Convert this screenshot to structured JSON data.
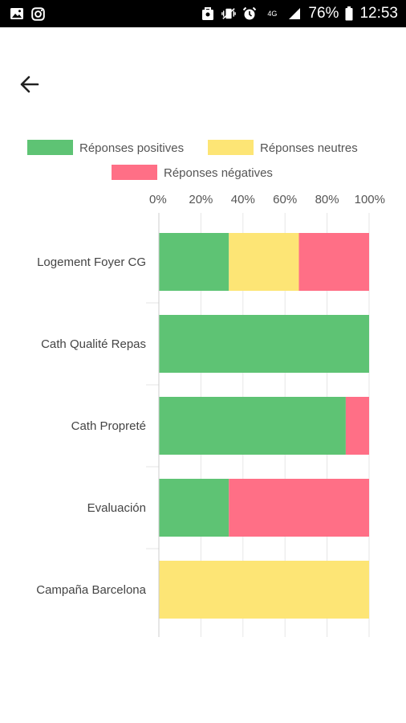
{
  "status_bar": {
    "left_icons": [
      "image-icon",
      "instagram-icon"
    ],
    "right_icons": [
      "work-profile-icon",
      "vibrate-icon",
      "alarm-icon",
      "network-icon",
      "signal-icon"
    ],
    "network_type": "4G",
    "battery": "76%",
    "time": "12:53"
  },
  "nav": {
    "back_icon": "arrow-left-icon"
  },
  "colors": {
    "positive": "#5ec374",
    "neutral": "#fde575",
    "negative": "#ff6f86"
  },
  "chart_data": {
    "type": "bar",
    "orientation": "horizontal",
    "stacked": true,
    "percent_stacked": true,
    "categories": [
      "Logement Foyer CG",
      "Cath Qualité Repas",
      "Cath Propreté",
      "Evaluación",
      "Campaña Barcelona"
    ],
    "series": [
      {
        "name": "Réponses positives",
        "color": "#5ec374",
        "values": [
          33.3,
          100,
          88.9,
          33.3,
          0
        ]
      },
      {
        "name": "Réponses neutres",
        "color": "#fde575",
        "values": [
          33.3,
          0,
          0,
          0,
          100
        ]
      },
      {
        "name": "Réponses négatives",
        "color": "#ff6f86",
        "values": [
          33.4,
          0,
          11.1,
          66.7,
          0
        ]
      }
    ],
    "x_ticks": [
      "0%",
      "20%",
      "40%",
      "60%",
      "80%",
      "100%"
    ],
    "xlim": [
      0,
      100
    ],
    "x_axis_position": "top",
    "grid": true,
    "legend_position": "top"
  }
}
